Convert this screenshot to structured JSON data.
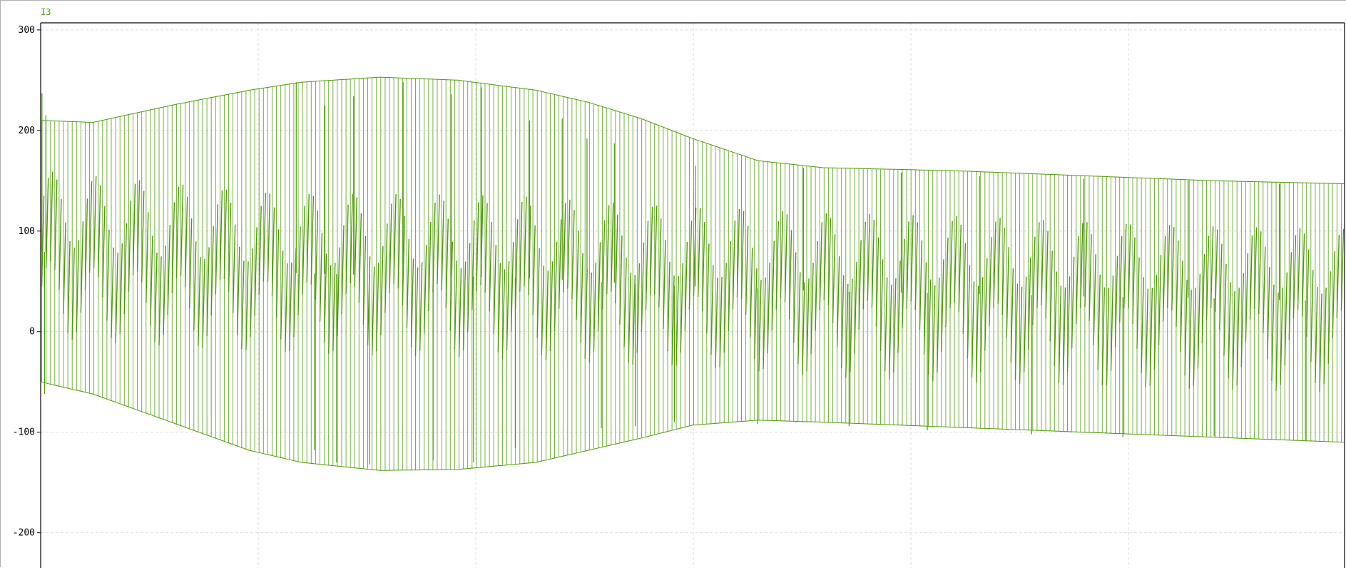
{
  "chart_data": {
    "type": "line",
    "title": "",
    "xlabel": "",
    "ylabel": "",
    "ylim": [
      -235,
      307
    ],
    "y_ticks": [
      300,
      200,
      100,
      0,
      -100,
      -200
    ],
    "grid": true,
    "grid_color": "#dddddd",
    "legend_position": "top-left",
    "x_labeled": false,
    "series": [
      {
        "name": "I3",
        "color": "#4e9a06",
        "envelope": {
          "x_fraction": [
            0,
            0.04,
            0.1,
            0.16,
            0.2,
            0.26,
            0.32,
            0.38,
            0.42,
            0.46,
            0.5,
            0.55,
            0.6,
            0.7,
            0.8,
            0.9,
            1.0
          ],
          "upper": [
            210,
            208,
            225,
            240,
            248,
            253,
            250,
            240,
            228,
            212,
            192,
            170,
            163,
            160,
            155,
            150,
            147
          ],
          "lower": [
            -50,
            -62,
            -90,
            -118,
            -130,
            -138,
            -137,
            -130,
            -118,
            -106,
            -93,
            -88,
            -90,
            -95,
            -100,
            -105,
            -110
          ]
        },
        "inner_band": {
          "upper": [
            160,
            155,
            148,
            140,
            138,
            137,
            136,
            134,
            130,
            127,
            125,
            122,
            118,
            115,
            110,
            105,
            102
          ],
          "lower": [
            -5,
            -10,
            -15,
            -20,
            -22,
            -24,
            -25,
            -28,
            -31,
            -34,
            -36,
            -40,
            -45,
            -50,
            -55,
            -58,
            -60
          ]
        },
        "center": [
          80,
          72,
          65,
          60,
          58,
          56,
          55,
          53,
          50,
          47,
          45,
          43,
          40,
          38,
          35,
          33,
          30
        ],
        "inner_period_fraction": 0.033,
        "spikes": [
          {
            "x_fraction": 0.001,
            "value": 237
          },
          {
            "x_fraction": 0.004,
            "value": 215
          },
          {
            "x_fraction": 0.003,
            "value": -62
          },
          {
            "x_fraction": 0.196,
            "value": 248
          },
          {
            "x_fraction": 0.21,
            "value": -118
          },
          {
            "x_fraction": 0.218,
            "value": 225
          },
          {
            "x_fraction": 0.227,
            "value": -130
          },
          {
            "x_fraction": 0.24,
            "value": 234
          },
          {
            "x_fraction": 0.252,
            "value": -132
          },
          {
            "x_fraction": 0.278,
            "value": 248
          },
          {
            "x_fraction": 0.301,
            "value": -128
          },
          {
            "x_fraction": 0.315,
            "value": 236
          },
          {
            "x_fraction": 0.332,
            "value": -130
          },
          {
            "x_fraction": 0.338,
            "value": 243
          },
          {
            "x_fraction": 0.364,
            "value": -116
          },
          {
            "x_fraction": 0.375,
            "value": 210
          },
          {
            "x_fraction": 0.4,
            "value": 212
          },
          {
            "x_fraction": 0.419,
            "value": 192
          },
          {
            "x_fraction": 0.43,
            "value": -96
          },
          {
            "x_fraction": 0.44,
            "value": 187
          },
          {
            "x_fraction": 0.456,
            "value": -94
          },
          {
            "x_fraction": 0.486,
            "value": -90
          },
          {
            "x_fraction": 0.502,
            "value": 165
          },
          {
            "x_fraction": 0.55,
            "value": -92
          },
          {
            "x_fraction": 0.585,
            "value": 163
          },
          {
            "x_fraction": 0.62,
            "value": -94
          },
          {
            "x_fraction": 0.66,
            "value": 158
          },
          {
            "x_fraction": 0.68,
            "value": -98
          },
          {
            "x_fraction": 0.72,
            "value": 155
          },
          {
            "x_fraction": 0.76,
            "value": -102
          },
          {
            "x_fraction": 0.8,
            "value": 152
          },
          {
            "x_fraction": 0.83,
            "value": -105
          },
          {
            "x_fraction": 0.88,
            "value": 150
          },
          {
            "x_fraction": 0.9,
            "value": -104
          },
          {
            "x_fraction": 0.95,
            "value": 147
          },
          {
            "x_fraction": 0.97,
            "value": -108
          }
        ]
      }
    ]
  }
}
